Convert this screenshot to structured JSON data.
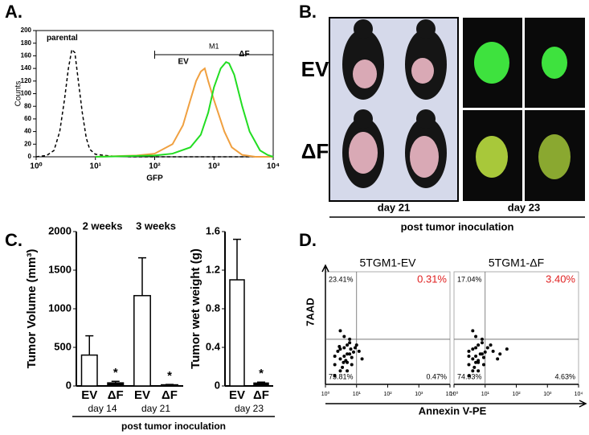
{
  "figure": {
    "panel_labels": [
      "A.",
      "B.",
      "C.",
      "D."
    ],
    "panel_b": {
      "rows": [
        "EV",
        "ΔF"
      ],
      "days": [
        "day 21",
        "day 23"
      ],
      "caption": "post tumor inoculation"
    },
    "panel_c_caption": "post tumor inoculation"
  },
  "chart_data": [
    {
      "type": "line",
      "xlabel": "GFP",
      "ylabel": "Counts",
      "xscale": "log",
      "xlim": [
        1,
        10000
      ],
      "xticks": [
        {
          "value": 1,
          "label": "10⁰"
        },
        {
          "value": 10,
          "label": "10¹"
        },
        {
          "value": 100,
          "label": "10²"
        },
        {
          "value": 1000,
          "label": "10³"
        },
        {
          "value": 10000,
          "label": "10⁴"
        }
      ],
      "ylim": [
        0,
        200
      ],
      "yticks": [
        0,
        20,
        40,
        60,
        80,
        100,
        120,
        140,
        160,
        180,
        200
      ],
      "gate": {
        "label": "M1",
        "range": [
          100,
          10000
        ]
      },
      "series": [
        {
          "name": "parental",
          "color": "#000000",
          "dash": true,
          "x": [
            1,
            1.5,
            2,
            2.5,
            3,
            3.5,
            4,
            4.5,
            5,
            6,
            7,
            8,
            10,
            15,
            20,
            40,
            100,
            10000
          ],
          "values": [
            0,
            2,
            10,
            40,
            90,
            140,
            170,
            165,
            130,
            70,
            30,
            12,
            4,
            2,
            1,
            0,
            0,
            0
          ]
        },
        {
          "name": "EV",
          "color": "#f0a040",
          "dash": false,
          "x": [
            10,
            50,
            100,
            200,
            300,
            400,
            500,
            600,
            700,
            800,
            1000,
            1500,
            2000,
            3000,
            5000,
            10000
          ],
          "values": [
            0,
            2,
            5,
            20,
            50,
            90,
            120,
            135,
            140,
            120,
            90,
            40,
            15,
            3,
            0,
            0
          ]
        },
        {
          "name": "ΔF",
          "color": "#22dd22",
          "dash": false,
          "x": [
            10,
            100,
            200,
            400,
            600,
            800,
            1000,
            1300,
            1600,
            1800,
            2200,
            3000,
            4000,
            6000,
            8000,
            10000
          ],
          "values": [
            0,
            2,
            5,
            15,
            35,
            70,
            110,
            140,
            150,
            148,
            130,
            80,
            40,
            10,
            3,
            0
          ]
        }
      ]
    },
    {
      "type": "bar",
      "title": "2 weeks",
      "ylabel": "Tumor Volume (mm³)",
      "xlabel": "day 14",
      "categories": [
        "EV",
        "ΔF"
      ],
      "values": [
        400,
        40
      ],
      "errors": [
        250,
        20
      ],
      "colors": [
        "#ffffff",
        "#000000"
      ],
      "ylim": [
        0,
        2000
      ],
      "yticks": [
        0,
        500,
        1000,
        1500,
        2000
      ],
      "annotations": [
        {
          "text": "*",
          "category": "ΔF"
        }
      ]
    },
    {
      "type": "bar",
      "title": "3 weeks",
      "xlabel": "day 21",
      "categories": [
        "EV",
        "ΔF"
      ],
      "values": [
        1170,
        15
      ],
      "errors": [
        490,
        5
      ],
      "colors": [
        "#ffffff",
        "#000000"
      ],
      "ylim": [
        0,
        2000
      ],
      "annotations": [
        {
          "text": "*",
          "category": "ΔF"
        }
      ]
    },
    {
      "type": "bar",
      "ylabel": "Tumor wet weight (g)",
      "xlabel": "day 23",
      "categories": [
        "EV",
        "ΔF"
      ],
      "values": [
        1.1,
        0.03
      ],
      "errors": [
        0.42,
        0.01
      ],
      "colors": [
        "#ffffff",
        "#000000"
      ],
      "ylim": [
        0,
        1.6
      ],
      "yticks": [
        0,
        0.4,
        0.8,
        1.2,
        1.6
      ],
      "annotations": [
        {
          "text": "*",
          "category": "ΔF"
        }
      ]
    },
    {
      "type": "scatter",
      "title": "5TGM1-EV",
      "ylabel": "7AAD",
      "xlabel": "Annexin V-PE",
      "xscale": "log",
      "yscale": "log",
      "xlim": [
        1,
        10000
      ],
      "ylim": [
        1,
        10000
      ],
      "xticks": [
        {
          "value": 1,
          "label": "10⁰"
        },
        {
          "value": 10,
          "label": "10¹"
        },
        {
          "value": 100,
          "label": "10²"
        },
        {
          "value": 1000,
          "label": "10³"
        },
        {
          "value": 10000,
          "label": "10⁴"
        }
      ],
      "gates": {
        "x": 10,
        "y": 40
      },
      "quadrants": [
        "23.41%",
        "0.31%",
        "75.81%",
        "0.47%"
      ],
      "quadrant_colors": [
        "#000000",
        "#e02020",
        "#000000",
        "#000000"
      ],
      "color": "#000000",
      "x": [
        2,
        3,
        4,
        5,
        3,
        6,
        2.5,
        4,
        7,
        5,
        3.5,
        8,
        2,
        4.5,
        6,
        3,
        5,
        9,
        12,
        15,
        4,
        3,
        6,
        2,
        7,
        10,
        5,
        3.8,
        2.8,
        6.5
      ],
      "values": [
        5,
        8,
        10,
        6,
        3,
        12,
        15,
        20,
        9,
        25,
        4,
        14,
        10,
        7,
        30,
        18,
        3,
        20,
        15,
        8,
        50,
        80,
        40,
        2,
        5,
        25,
        12,
        6,
        22,
        18
      ]
    },
    {
      "type": "scatter",
      "title": "5TGM1-ΔF",
      "xscale": "log",
      "yscale": "log",
      "xlim": [
        1,
        10000
      ],
      "ylim": [
        1,
        10000
      ],
      "xticks": [
        {
          "value": 1,
          "label": "10⁰"
        },
        {
          "value": 10,
          "label": "10¹"
        },
        {
          "value": 100,
          "label": "10²"
        },
        {
          "value": 1000,
          "label": "10³"
        },
        {
          "value": 10000,
          "label": "10⁴"
        }
      ],
      "gates": {
        "x": 10,
        "y": 40
      },
      "quadrants": [
        "17.04%",
        "3.40%",
        "74.93%",
        "4.63%"
      ],
      "quadrant_colors": [
        "#000000",
        "#e02020",
        "#000000",
        "#000000"
      ],
      "color": "#000000",
      "x": [
        3,
        4,
        5,
        6,
        4,
        8,
        3,
        5,
        9,
        6,
        4.5,
        10,
        3,
        6,
        8,
        4,
        6,
        12,
        18,
        25,
        30,
        5,
        4,
        8,
        3,
        9,
        15,
        7,
        5,
        50
      ],
      "values": [
        5,
        8,
        10,
        6,
        3,
        12,
        15,
        20,
        9,
        25,
        4,
        14,
        10,
        7,
        30,
        18,
        3,
        20,
        15,
        8,
        12,
        50,
        80,
        40,
        2,
        5,
        25,
        12,
        6,
        18
      ]
    }
  ]
}
